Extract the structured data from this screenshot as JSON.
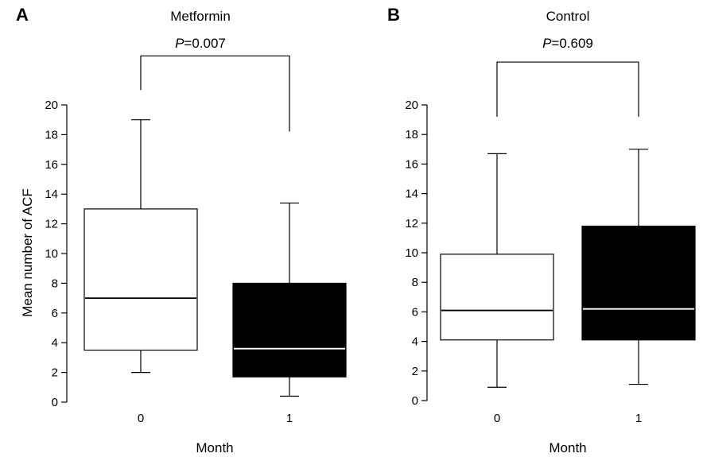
{
  "chart_data": [
    {
      "type": "boxplot",
      "panel_label": "A",
      "title": "Metformin",
      "p_label": "P",
      "p_value": "=0.007",
      "xlabel": "Month",
      "ylabel": "Mean number of ACF",
      "ylim": [
        0,
        20
      ],
      "yticks": [
        0,
        2,
        4,
        6,
        8,
        10,
        12,
        14,
        16,
        18,
        20
      ],
      "categories": [
        "0",
        "1"
      ],
      "boxes": [
        {
          "category": "0",
          "min": 2.0,
          "q1": 3.5,
          "median": 7.0,
          "q3": 13.0,
          "max": 19.0,
          "fill": "#ffffff",
          "median_color": "#000000"
        },
        {
          "category": "1",
          "min": 0.4,
          "q1": 1.7,
          "median": 3.6,
          "q3": 8.0,
          "max": 13.4,
          "fill": "#000000",
          "median_color": "#ffffff"
        }
      ],
      "bracket": {
        "left_bottom": 21.0,
        "right_bottom": 18.2,
        "top": 23.3
      }
    },
    {
      "type": "boxplot",
      "panel_label": "B",
      "title": "Control",
      "p_label": "P",
      "p_value": "=0.609",
      "xlabel": "Month",
      "ylabel": "",
      "ylim": [
        0,
        20
      ],
      "yticks": [
        0,
        2,
        4,
        6,
        8,
        10,
        12,
        14,
        16,
        18,
        20
      ],
      "categories": [
        "0",
        "1"
      ],
      "boxes": [
        {
          "category": "0",
          "min": 0.9,
          "q1": 4.1,
          "median": 6.1,
          "q3": 9.9,
          "max": 16.7,
          "fill": "#ffffff",
          "median_color": "#000000"
        },
        {
          "category": "1",
          "min": 1.1,
          "q1": 4.1,
          "median": 6.2,
          "q3": 11.8,
          "max": 17.0,
          "fill": "#000000",
          "median_color": "#ffffff"
        }
      ],
      "bracket": {
        "left_bottom": 19.2,
        "right_bottom": 19.2,
        "top": 22.9
      }
    }
  ]
}
